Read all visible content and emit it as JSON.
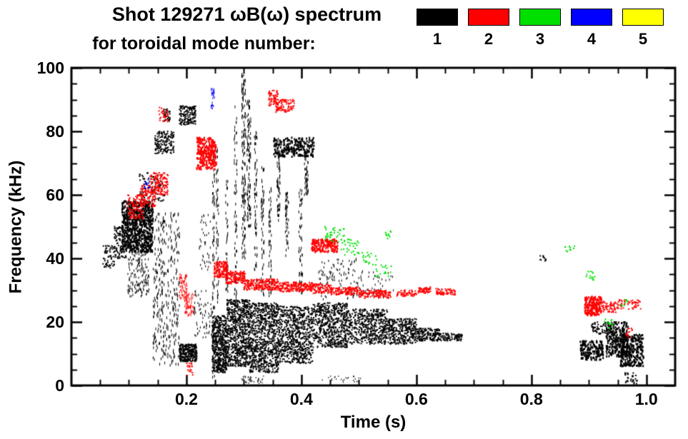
{
  "chart_data": {
    "type": "scatter",
    "title": "Shot 129271 ωB(ω) spectrum",
    "subtitle": "for toroidal mode number:",
    "xlabel": "Time (s)",
    "ylabel": "Frequency (kHz)",
    "xlim": [
      0,
      1.05
    ],
    "ylim": [
      0,
      100
    ],
    "xticks": {
      "values": [
        0.2,
        0.4,
        0.6,
        0.8,
        1.0
      ],
      "labels": [
        "0.2",
        "0.4",
        "0.6",
        "0.8",
        "1.0"
      ]
    },
    "yticks": {
      "values": [
        0,
        20,
        40,
        60,
        80,
        100
      ],
      "labels": [
        "0",
        "20",
        "40",
        "60",
        "80",
        "100"
      ]
    },
    "xminor": 0.05,
    "yminor": 5,
    "grid": false,
    "legend_position": "top-right",
    "legend": [
      {
        "label": "1",
        "color": "#000000"
      },
      {
        "label": "2",
        "color": "#ff0000"
      },
      {
        "label": "3",
        "color": "#00e000"
      },
      {
        "label": "4",
        "color": "#0000ff"
      },
      {
        "label": "5",
        "color": "#ffff00"
      }
    ],
    "cluster_format": [
      "t_start_s",
      "t_end_s",
      "f_min_kHz",
      "f_max_kHz",
      "point_count",
      "dot_w_px",
      "dot_h_px"
    ],
    "series": [
      {
        "name": "n=1",
        "color": "#000000",
        "clusters": [
          [
            0.055,
            0.075,
            37,
            44,
            60,
            2,
            2
          ],
          [
            0.075,
            0.095,
            40,
            50,
            110,
            2,
            2
          ],
          [
            0.088,
            0.142,
            42,
            58,
            750,
            2,
            3
          ],
          [
            0.098,
            0.135,
            28,
            42,
            160,
            1,
            3
          ],
          [
            0.118,
            0.162,
            58,
            67,
            90,
            2,
            2
          ],
          [
            0.142,
            0.188,
            6,
            55,
            340,
            1,
            4
          ],
          [
            0.145,
            0.178,
            73,
            80,
            150,
            2,
            2
          ],
          [
            0.16,
            0.172,
            83,
            87,
            35,
            2,
            2
          ],
          [
            0.188,
            0.218,
            7.5,
            13,
            260,
            2,
            2
          ],
          [
            0.188,
            0.216,
            82,
            88,
            150,
            2,
            2
          ],
          [
            0.213,
            0.247,
            15,
            30,
            70,
            1,
            3
          ],
          [
            0.222,
            0.242,
            35,
            55,
            40,
            1,
            3
          ],
          [
            0.245,
            0.249,
            2,
            75,
            80,
            1,
            4
          ],
          [
            0.245,
            0.27,
            4,
            22,
            500,
            2,
            2
          ],
          [
            0.27,
            0.31,
            6,
            27,
            700,
            2,
            2
          ],
          [
            0.31,
            0.36,
            4,
            26,
            800,
            2,
            2
          ],
          [
            0.36,
            0.42,
            7,
            25,
            700,
            2,
            2
          ],
          [
            0.42,
            0.48,
            12,
            26,
            600,
            2,
            2
          ],
          [
            0.48,
            0.55,
            13,
            24,
            480,
            2,
            2
          ],
          [
            0.55,
            0.6,
            13,
            21,
            320,
            2,
            2
          ],
          [
            0.6,
            0.64,
            14,
            18,
            160,
            2,
            2
          ],
          [
            0.64,
            0.68,
            14,
            16.5,
            90,
            2,
            2
          ],
          [
            0.252,
            0.256,
            25,
            75,
            55,
            1,
            4
          ],
          [
            0.268,
            0.272,
            25,
            65,
            45,
            1,
            4
          ],
          [
            0.283,
            0.288,
            25,
            88,
            70,
            1,
            4
          ],
          [
            0.296,
            0.303,
            40,
            98,
            150,
            1,
            4
          ],
          [
            0.305,
            0.312,
            50,
            90,
            110,
            1,
            4
          ],
          [
            0.318,
            0.323,
            30,
            80,
            75,
            1,
            4
          ],
          [
            0.33,
            0.335,
            28,
            70,
            60,
            1,
            4
          ],
          [
            0.343,
            0.348,
            28,
            62,
            55,
            1,
            4
          ],
          [
            0.357,
            0.363,
            50,
            78,
            70,
            1,
            4
          ],
          [
            0.372,
            0.378,
            40,
            62,
            45,
            1,
            4
          ],
          [
            0.395,
            0.402,
            28,
            62,
            60,
            1,
            4
          ],
          [
            0.405,
            0.412,
            60,
            74,
            55,
            1,
            4
          ],
          [
            0.352,
            0.422,
            72,
            78,
            230,
            2,
            3
          ],
          [
            0.43,
            0.5,
            27,
            40,
            110,
            1,
            3
          ],
          [
            0.5,
            0.56,
            27,
            36,
            50,
            1,
            3
          ],
          [
            0.296,
            0.335,
            0.5,
            3,
            40,
            1,
            2
          ],
          [
            0.435,
            0.505,
            1,
            3,
            25,
            1,
            2
          ],
          [
            0.815,
            0.825,
            39,
            41,
            10,
            2,
            2
          ],
          [
            0.885,
            0.925,
            8,
            14,
            170,
            2,
            3
          ],
          [
            0.905,
            0.93,
            16,
            20,
            50,
            2,
            2
          ],
          [
            0.93,
            0.968,
            9,
            20,
            260,
            2,
            3
          ],
          [
            0.955,
            0.995,
            6,
            16,
            280,
            2,
            3
          ],
          [
            0.962,
            0.985,
            0.5,
            4,
            30,
            2,
            2
          ]
        ]
      },
      {
        "name": "n=2",
        "color": "#ff0000",
        "clusters": [
          [
            0.098,
            0.125,
            52,
            60,
            110,
            2,
            2
          ],
          [
            0.118,
            0.147,
            56,
            63,
            110,
            2,
            2
          ],
          [
            0.138,
            0.168,
            60,
            67,
            130,
            2,
            2
          ],
          [
            0.152,
            0.168,
            83,
            88,
            30,
            2,
            2
          ],
          [
            0.188,
            0.201,
            27,
            35,
            65,
            1,
            3
          ],
          [
            0.197,
            0.213,
            22,
            29,
            70,
            1,
            3
          ],
          [
            0.2,
            0.211,
            3,
            8,
            18,
            2,
            2
          ],
          [
            0.218,
            0.252,
            68,
            78,
            280,
            2,
            3
          ],
          [
            0.248,
            0.272,
            34,
            39,
            150,
            2,
            2
          ],
          [
            0.268,
            0.302,
            32,
            36,
            160,
            2,
            2
          ],
          [
            0.3,
            0.36,
            30,
            33.5,
            220,
            2,
            2
          ],
          [
            0.358,
            0.42,
            29.5,
            32.5,
            200,
            2,
            2
          ],
          [
            0.343,
            0.36,
            88,
            93,
            60,
            2,
            2
          ],
          [
            0.355,
            0.388,
            86,
            90,
            90,
            2,
            2
          ],
          [
            0.418,
            0.463,
            42,
            46,
            170,
            2,
            3
          ],
          [
            0.42,
            0.452,
            29,
            32,
            90,
            2,
            2
          ],
          [
            0.45,
            0.502,
            28.5,
            31,
            140,
            2,
            2
          ],
          [
            0.5,
            0.556,
            27.5,
            30,
            130,
            2,
            2
          ],
          [
            0.565,
            0.6,
            28,
            30,
            55,
            2,
            2
          ],
          [
            0.603,
            0.625,
            29,
            31,
            50,
            2,
            2
          ],
          [
            0.633,
            0.668,
            28.5,
            30.5,
            70,
            2,
            2
          ],
          [
            0.893,
            0.922,
            22,
            28,
            190,
            2,
            3
          ],
          [
            0.92,
            0.947,
            23,
            26.5,
            60,
            2,
            2
          ],
          [
            0.948,
            0.99,
            24,
            27,
            60,
            2,
            2
          ],
          [
            0.963,
            0.976,
            15,
            18,
            14,
            2,
            2
          ]
        ]
      },
      {
        "name": "n=3",
        "color": "#00e000",
        "clusters": [
          [
            0.44,
            0.476,
            45,
            50,
            40,
            2,
            2
          ],
          [
            0.468,
            0.502,
            41,
            46,
            30,
            2,
            2
          ],
          [
            0.5,
            0.532,
            38,
            42,
            20,
            2,
            2
          ],
          [
            0.528,
            0.56,
            34,
            38,
            18,
            2,
            2
          ],
          [
            0.543,
            0.556,
            46,
            49,
            10,
            2,
            2
          ],
          [
            0.858,
            0.876,
            42,
            44,
            10,
            2,
            2
          ],
          [
            0.893,
            0.912,
            33,
            36,
            14,
            2,
            2
          ],
          [
            0.927,
            0.941,
            18,
            21,
            12,
            2,
            2
          ],
          [
            0.953,
            0.968,
            25,
            27,
            8,
            2,
            2
          ]
        ]
      },
      {
        "name": "n=4",
        "color": "#0000ff",
        "clusters": [
          [
            0.243,
            0.249,
            87,
            94,
            26,
            1,
            3
          ],
          [
            0.127,
            0.136,
            62,
            65,
            10,
            2,
            2
          ]
        ]
      },
      {
        "name": "n=5",
        "color": "#ffff00",
        "clusters": []
      }
    ]
  }
}
